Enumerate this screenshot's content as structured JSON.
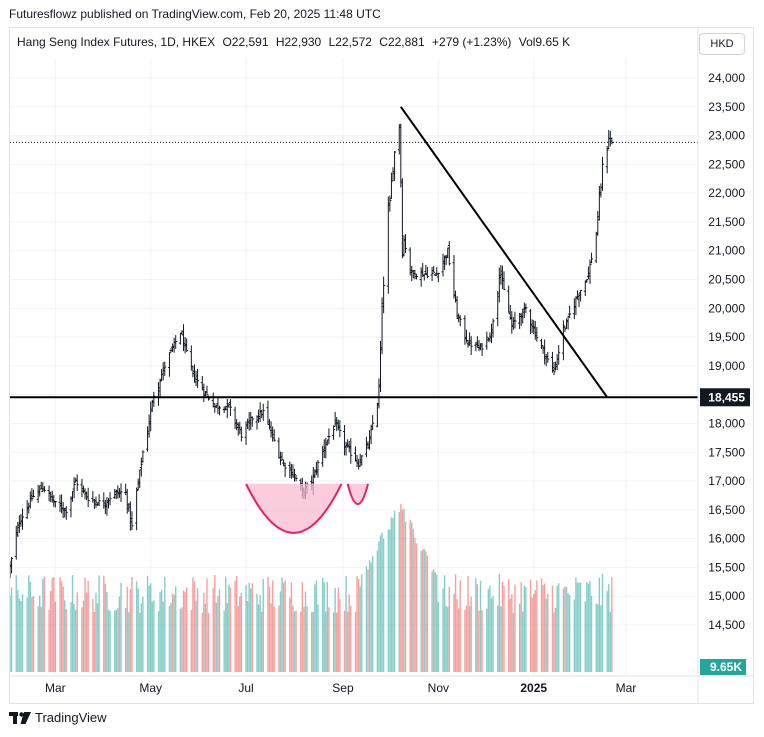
{
  "publisher": {
    "text": "Futuresflowz published on TradingView.com, Feb 20, 2025 11:48 UTC"
  },
  "legend": {
    "symbol": "Hang Seng Index Futures, 1D, HKEX",
    "open": "O22,591",
    "high": "H22,930",
    "low": "L22,572",
    "close": "C22,881",
    "change": "+279 (+1.23%)",
    "volume": "Vol9.65 K"
  },
  "currency_button": "HKD",
  "footer": {
    "brand": "TradingView",
    "logo_icon": "tradingview-logo-icon"
  },
  "colors": {
    "up": "#26a69a",
    "down": "#ef5350",
    "bar": "#131722",
    "annotation": "#e91e63"
  },
  "chart_data": {
    "type": "ohlc",
    "y_axis": {
      "range": [
        14200,
        24500
      ],
      "ticks": [
        "24,000",
        "23,500",
        "23,000",
        "22,500",
        "22,000",
        "21,500",
        "21,000",
        "20,500",
        "20,000",
        "19,500",
        "19,000",
        "18,500",
        "18,000",
        "17,500",
        "17,000",
        "16,500",
        "16,000",
        "15,500",
        "15,000",
        "14,500"
      ]
    },
    "x_axis": {
      "start": "2024-02-01",
      "end": "2025-03-10",
      "labels": [
        {
          "date": "2024-03-01",
          "text": "Mar",
          "bold": false
        },
        {
          "date": "2024-05-01",
          "text": "May",
          "bold": false
        },
        {
          "date": "2024-07-01",
          "text": "Jul",
          "bold": false
        },
        {
          "date": "2024-09-01",
          "text": "Sep",
          "bold": false
        },
        {
          "date": "2024-11-01",
          "text": "Nov",
          "bold": false
        },
        {
          "date": "2025-01-01",
          "text": "2025",
          "bold": true
        },
        {
          "date": "2025-03-01",
          "text": "Mar",
          "bold": false
        }
      ]
    },
    "price_path": [
      [
        "2024-02-01",
        15500
      ],
      [
        "2024-02-07",
        16300
      ],
      [
        "2024-02-15",
        16700
      ],
      [
        "2024-02-22",
        16900
      ],
      [
        "2024-03-01",
        16600
      ],
      [
        "2024-03-08",
        16500
      ],
      [
        "2024-03-14",
        17000
      ],
      [
        "2024-03-22",
        16700
      ],
      [
        "2024-04-01",
        16600
      ],
      [
        "2024-04-08",
        16800
      ],
      [
        "2024-04-15",
        16800
      ],
      [
        "2024-04-19",
        16200
      ],
      [
        "2024-04-26",
        17500
      ],
      [
        "2024-05-03",
        18500
      ],
      [
        "2024-05-10",
        19000
      ],
      [
        "2024-05-20",
        19600
      ],
      [
        "2024-05-27",
        18900
      ],
      [
        "2024-06-03",
        18600
      ],
      [
        "2024-06-11",
        18300
      ],
      [
        "2024-06-20",
        18300
      ],
      [
        "2024-06-28",
        17800
      ],
      [
        "2024-07-05",
        18100
      ],
      [
        "2024-07-12",
        18200
      ],
      [
        "2024-07-19",
        17700
      ],
      [
        "2024-07-25",
        17300
      ],
      [
        "2024-08-01",
        17100
      ],
      [
        "2024-08-06",
        16800
      ],
      [
        "2024-08-12",
        17000
      ],
      [
        "2024-08-20",
        17600
      ],
      [
        "2024-08-27",
        18000
      ],
      [
        "2024-09-03",
        17600
      ],
      [
        "2024-09-11",
        17300
      ],
      [
        "2024-09-18",
        17700
      ],
      [
        "2024-09-24",
        18600
      ],
      [
        "2024-09-27",
        20500
      ],
      [
        "2024-10-03",
        22500
      ],
      [
        "2024-10-07",
        23300
      ],
      [
        "2024-10-09",
        21300
      ],
      [
        "2024-10-15",
        20600
      ],
      [
        "2024-10-23",
        20600
      ],
      [
        "2024-10-31",
        20600
      ],
      [
        "2024-11-07",
        21000
      ],
      [
        "2024-11-13",
        19900
      ],
      [
        "2024-11-20",
        19400
      ],
      [
        "2024-11-28",
        19300
      ],
      [
        "2024-12-05",
        19600
      ],
      [
        "2024-12-10",
        20800
      ],
      [
        "2024-12-12",
        20400
      ],
      [
        "2024-12-18",
        19700
      ],
      [
        "2024-12-27",
        20000
      ],
      [
        "2025-01-03",
        19500
      ],
      [
        "2025-01-10",
        19100
      ],
      [
        "2025-01-14",
        18900
      ],
      [
        "2025-01-20",
        19600
      ],
      [
        "2025-01-27",
        20100
      ],
      [
        "2025-02-05",
        20600
      ],
      [
        "2025-02-10",
        21300
      ],
      [
        "2025-02-14",
        22400
      ],
      [
        "2025-02-18",
        23000
      ],
      [
        "2025-02-20",
        22881
      ]
    ],
    "volume": {
      "range": [
        0,
        17000
      ],
      "peak_date": "2024-10-07",
      "last_value": 9650,
      "last_label": "9.65K"
    },
    "annotations": {
      "horizontal_line": {
        "price": 18455,
        "label": "18,455"
      },
      "dotted_price_line": {
        "price": 22881
      },
      "trendline": {
        "from": [
          "2024-10-08",
          23500
        ],
        "to": [
          "2025-02-17",
          18455
        ]
      },
      "cup_arcs": [
        {
          "from": "2024-07-01",
          "to": "2024-08-31",
          "price_top": 16950,
          "price_bottom": 16100
        },
        {
          "from": "2024-09-04",
          "to": "2024-09-17",
          "price_top": 16950,
          "price_bottom": 16600
        }
      ]
    }
  }
}
